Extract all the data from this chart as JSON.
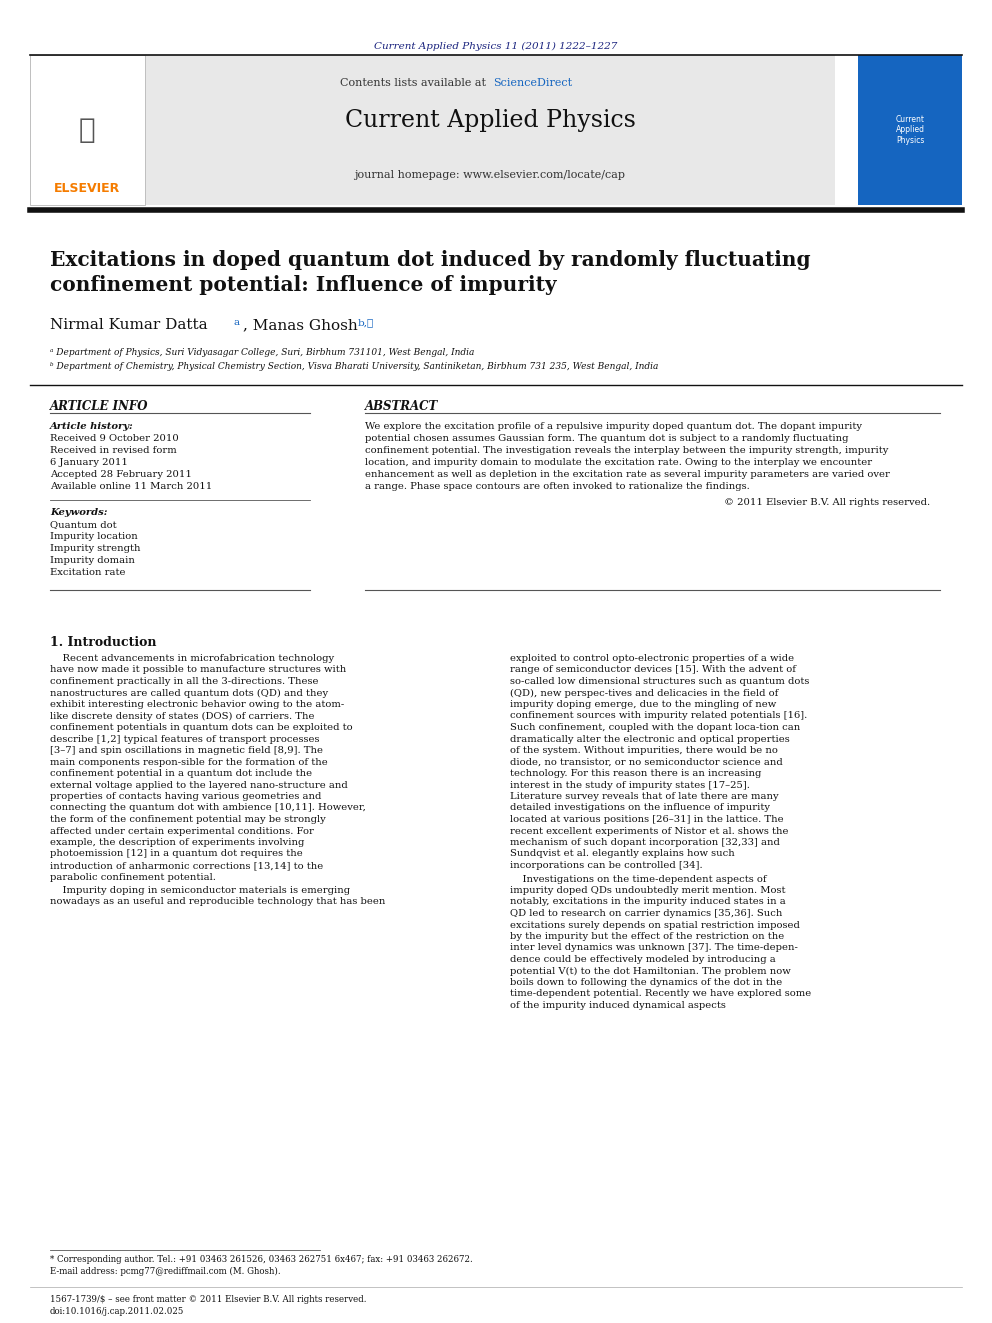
{
  "page_width": 9.92,
  "page_height": 13.23,
  "background_color": "#ffffff",
  "journal_ref_text": "Current Applied Physics 11 (2011) 1222–1227",
  "journal_ref_color": "#1a237e",
  "contents_text": "Contents lists available at ",
  "sciencedirect_text": "ScienceDirect",
  "sciencedirect_color": "#1565c0",
  "journal_name": "Current Applied Physics",
  "journal_homepage": "journal homepage: www.elsevier.com/locate/cap",
  "header_bg_color": "#e8e8e8",
  "elsevier_color": "#f57c00",
  "thick_line_color": "#1a1a1a",
  "paper_title_line1": "Excitations in doped quantum dot induced by randomly fluctuating",
  "paper_title_line2": "confinement potential: Influence of impurity",
  "paper_title_fontsize": 14.5,
  "authors": "Nirmal Kumar Datta",
  "authors2": ", Manas Ghosh",
  "affil_a": "ᵃ Department of Physics, Suri Vidyasagar College, Suri, Birbhum 731101, West Bengal, India",
  "affil_b": "ᵇ Department of Chemistry, Physical Chemistry Section, Visva Bharati University, Santiniketan, Birbhum 731 235, West Bengal, India",
  "section_article_info": "ARTICLE INFO",
  "section_abstract": "ABSTRACT",
  "article_history_label": "Article history:",
  "received_1": "Received 9 October 2010",
  "received_revised": "Received in revised form",
  "received_revised_date": "6 January 2011",
  "accepted": "Accepted 28 February 2011",
  "available": "Available online 11 March 2011",
  "keywords_label": "Keywords:",
  "keywords": [
    "Quantum dot",
    "Impurity location",
    "Impurity strength",
    "Impurity domain",
    "Excitation rate"
  ],
  "abstract_text": "We explore the excitation profile of a repulsive impurity doped quantum dot. The dopant impurity potential chosen assumes Gaussian form. The quantum dot is subject to a randomly fluctuating confinement potential. The investigation reveals the interplay between the impurity strength, impurity location, and impurity domain to modulate the excitation rate. Owing to the interplay we encounter enhancement as well as depletion in the excitation rate as several impurity parameters are varied over a range. Phase space contours are often invoked to rationalize the findings.",
  "copyright_text": "© 2011 Elsevier B.V. All rights reserved.",
  "intro_heading": "1. Introduction",
  "intro_col1": "Recent advancements in microfabrication technology have now made it possible to manufacture structures with confinement practically in all the 3-directions. These nanostructures are called quantum dots (QD) and they exhibit interesting electronic behavior owing to the atom-like discrete density of states (DOS) of carriers. The confinement potentials in quantum dots can be exploited to describe [1,2] typical features of transport processes [3–7] and spin oscillations in magnetic field [8,9]. The main components responsible for the formation of the confinement potential in a quantum dot include the external voltage applied to the layered nanostructure and properties of contacts having various geometries and connecting the quantum dot with ambience [10,11]. However, the form of the confinement potential may be strongly affected under certain experimental conditions. For example, the description of experiments involving photoemission [12] in a quantum dot requires the introduction of anharmonic corrections [13,14] to the parabolic confinement potential.",
  "intro_col1_p2": "    Impurity doping in semiconductor materials is emerging nowadays as an useful and reproducible technology that has been",
  "intro_col2": "exploited to control opto-electronic properties of a wide range of semiconductor devices [15]. With the advent of so-called low dimensional structures such as quantum dots (QD), new perspectives and delicacies in the field of impurity doping emerge, due to the mingling of new confinement sources with impurity related potentials [16]. Such confinement, coupled with the dopant location can dramatically alter the electronic and optical properties of the system. Without impurities, there would be no diode, no transistor, or no semiconductor science and technology. For this reason there is an increasing interest in the study of impurity states [17–25]. Literature survey reveals that of late there are many detailed investigations on the influence of impurity located at various positions [26–31] in the lattice. The recent excellent experiments of Nistor et al. shows the mechanism of such dopant incorporation [32,33] and Sundqvist et al. elegantly explains how such incorporations can be controlled [34].",
  "intro_col2_p2": "    Investigations on the time-dependent aspects of impurity doped QDs undoubtedly merit mention. Most notably, excitations in the impurity induced states in a QD led to research on carrier dynamics [35,36]. Such excitations surely depends on spatial restriction imposed by the impurity but the effect of the restriction on the inter level dynamics was unknown [37]. The time-dependence could be effectively modeled by introducing a potential V(t) to the dot Hamiltonian. The problem now boils down to following the dynamics of the dot in the time-dependent potential. Recently we have explored some of the impurity induced dynamical aspects",
  "footnote_star": "* Corresponding author. Tel.: +91 03463 261526, 03463 262751 6x467; fax: +91 03463 262672.",
  "footnote_email": "E-mail address: pcmg77@rediffmail.com (M. Ghosh).",
  "footer_issn": "1567-1739/$ – see front matter © 2011 Elsevier B.V. All rights reserved.",
  "footer_doi": "doi:10.1016/j.cap.2011.02.025",
  "text_color": "#000000",
  "link_color": "#1565c0",
  "small_fontsize": 6.5,
  "body_fontsize": 7.2,
  "section_fontsize": 8.0,
  "author_fontsize": 11.0,
  "title_fontsize": 14.5
}
